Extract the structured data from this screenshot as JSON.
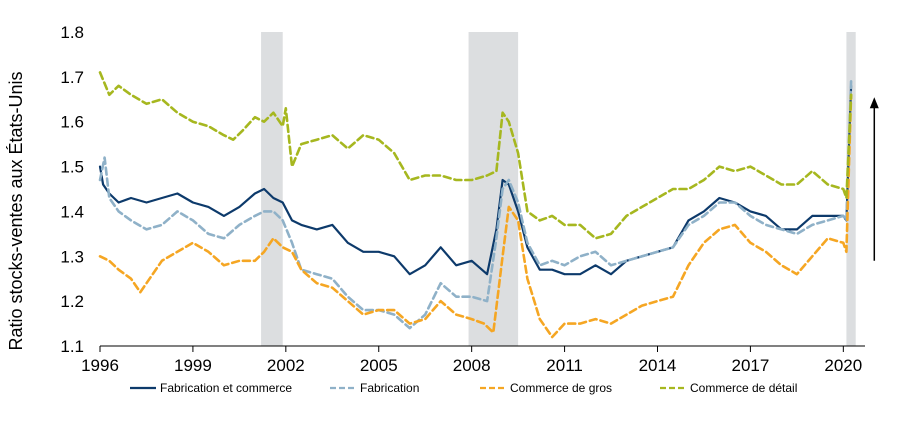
{
  "chart_data": {
    "type": "line",
    "ylabel": "Ratio stocks-ventes aux États-Unis",
    "xlabel": "",
    "xlim": [
      1996.0,
      2020.7
    ],
    "ylim": [
      1.1,
      1.8
    ],
    "x_ticks": [
      1996,
      1999,
      2002,
      2005,
      2008,
      2011,
      2014,
      2017,
      2020
    ],
    "x_tick_labels": [
      "1996",
      "1999",
      "2002",
      "2005",
      "2008",
      "2011",
      "2014",
      "2017",
      "2020"
    ],
    "y_ticks": [
      1.1,
      1.2,
      1.3,
      1.4,
      1.5,
      1.6,
      1.7,
      1.8
    ],
    "y_tick_labels": [
      "1.1",
      "1.2",
      "1.3",
      "1.4",
      "1.5",
      "1.6",
      "1.7",
      "1.8"
    ],
    "grid": false,
    "legend_position": "bottom",
    "recession_bands": [
      [
        2001.2,
        2001.9
      ],
      [
        2007.9,
        2009.5
      ],
      [
        2020.1,
        2020.4
      ]
    ],
    "annotation_arrow": {
      "x": 2021.0,
      "y_from": 1.29,
      "y_to": 1.65
    },
    "series": [
      {
        "name": "Fabrication et commerce",
        "color": "#0d3a6b",
        "dash": "solid",
        "x": [
          1996.0,
          1996.1,
          1996.3,
          1996.6,
          1997.0,
          1997.5,
          1998.0,
          1998.5,
          1999.0,
          1999.5,
          2000.0,
          2000.5,
          2001.0,
          2001.3,
          2001.6,
          2001.9,
          2002.2,
          2002.5,
          2003.0,
          2003.5,
          2004.0,
          2004.5,
          2005.0,
          2005.5,
          2006.0,
          2006.5,
          2007.0,
          2007.5,
          2008.0,
          2008.5,
          2008.8,
          2009.0,
          2009.2,
          2009.5,
          2009.8,
          2010.2,
          2010.6,
          2011.0,
          2011.5,
          2012.0,
          2012.5,
          2013.0,
          2013.5,
          2014.0,
          2014.5,
          2015.0,
          2015.5,
          2016.0,
          2016.5,
          2017.0,
          2017.5,
          2018.0,
          2018.5,
          2019.0,
          2019.5,
          2020.0,
          2020.1,
          2020.25
        ],
        "y": [
          1.5,
          1.46,
          1.44,
          1.42,
          1.43,
          1.42,
          1.43,
          1.44,
          1.42,
          1.41,
          1.39,
          1.41,
          1.44,
          1.45,
          1.43,
          1.42,
          1.38,
          1.37,
          1.36,
          1.37,
          1.33,
          1.31,
          1.31,
          1.3,
          1.26,
          1.28,
          1.32,
          1.28,
          1.29,
          1.26,
          1.36,
          1.47,
          1.46,
          1.4,
          1.32,
          1.27,
          1.27,
          1.26,
          1.26,
          1.28,
          1.26,
          1.29,
          1.3,
          1.31,
          1.32,
          1.38,
          1.4,
          1.43,
          1.42,
          1.4,
          1.39,
          1.36,
          1.36,
          1.39,
          1.39,
          1.39,
          1.38,
          1.68
        ]
      },
      {
        "name": "Fabrication",
        "color": "#8fb1c8",
        "dash": "dashed",
        "x": [
          1996.0,
          1996.15,
          1996.3,
          1996.6,
          1997.0,
          1997.5,
          1998.0,
          1998.5,
          1999.0,
          1999.5,
          2000.0,
          2000.5,
          2001.0,
          2001.3,
          2001.6,
          2001.9,
          2002.2,
          2002.5,
          2003.0,
          2003.5,
          2004.0,
          2004.5,
          2005.0,
          2005.5,
          2006.0,
          2006.5,
          2007.0,
          2007.5,
          2008.0,
          2008.5,
          2008.8,
          2009.0,
          2009.2,
          2009.5,
          2009.8,
          2010.2,
          2010.6,
          2011.0,
          2011.5,
          2012.0,
          2012.5,
          2013.0,
          2013.5,
          2014.0,
          2014.5,
          2015.0,
          2015.5,
          2016.0,
          2016.5,
          2017.0,
          2017.5,
          2018.0,
          2018.5,
          2019.0,
          2019.5,
          2020.0,
          2020.1,
          2020.25
        ],
        "y": [
          1.47,
          1.52,
          1.43,
          1.4,
          1.38,
          1.36,
          1.37,
          1.4,
          1.38,
          1.35,
          1.34,
          1.37,
          1.39,
          1.4,
          1.4,
          1.38,
          1.33,
          1.27,
          1.26,
          1.25,
          1.21,
          1.18,
          1.18,
          1.17,
          1.14,
          1.17,
          1.24,
          1.21,
          1.21,
          1.2,
          1.34,
          1.45,
          1.47,
          1.42,
          1.33,
          1.28,
          1.29,
          1.28,
          1.3,
          1.31,
          1.28,
          1.29,
          1.3,
          1.31,
          1.32,
          1.37,
          1.39,
          1.42,
          1.42,
          1.39,
          1.37,
          1.36,
          1.35,
          1.37,
          1.38,
          1.39,
          1.38,
          1.69
        ]
      },
      {
        "name": "Commerce de gros",
        "color": "#f5a623",
        "dash": "dashed",
        "x": [
          1996.0,
          1996.3,
          1996.6,
          1997.0,
          1997.3,
          1997.7,
          1998.0,
          1998.5,
          1999.0,
          1999.5,
          2000.0,
          2000.5,
          2001.0,
          2001.3,
          2001.6,
          2001.9,
          2002.2,
          2002.5,
          2003.0,
          2003.5,
          2004.0,
          2004.5,
          2005.0,
          2005.5,
          2006.0,
          2006.5,
          2007.0,
          2007.5,
          2008.0,
          2008.4,
          2008.7,
          2009.0,
          2009.2,
          2009.5,
          2009.8,
          2010.2,
          2010.6,
          2011.0,
          2011.5,
          2012.0,
          2012.5,
          2013.0,
          2013.5,
          2014.0,
          2014.5,
          2015.0,
          2015.5,
          2016.0,
          2016.5,
          2017.0,
          2017.5,
          2018.0,
          2018.5,
          2019.0,
          2019.5,
          2020.0,
          2020.1,
          2020.25
        ],
        "y": [
          1.3,
          1.29,
          1.27,
          1.25,
          1.22,
          1.26,
          1.29,
          1.31,
          1.33,
          1.31,
          1.28,
          1.29,
          1.29,
          1.31,
          1.34,
          1.32,
          1.31,
          1.27,
          1.24,
          1.23,
          1.2,
          1.17,
          1.18,
          1.18,
          1.15,
          1.16,
          1.2,
          1.17,
          1.16,
          1.15,
          1.13,
          1.3,
          1.41,
          1.38,
          1.25,
          1.16,
          1.12,
          1.15,
          1.15,
          1.16,
          1.15,
          1.17,
          1.19,
          1.2,
          1.21,
          1.28,
          1.33,
          1.36,
          1.37,
          1.33,
          1.31,
          1.28,
          1.26,
          1.3,
          1.34,
          1.33,
          1.31,
          1.66
        ]
      },
      {
        "name": "Commerce de détail",
        "color": "#a6b71f",
        "dash": "dashed",
        "x": [
          1996.0,
          1996.3,
          1996.6,
          1997.0,
          1997.5,
          1998.0,
          1998.5,
          1999.0,
          1999.5,
          2000.0,
          2000.3,
          2000.6,
          2001.0,
          2001.3,
          2001.6,
          2001.9,
          2002.0,
          2002.2,
          2002.5,
          2003.0,
          2003.5,
          2004.0,
          2004.5,
          2005.0,
          2005.5,
          2006.0,
          2006.5,
          2007.0,
          2007.5,
          2008.0,
          2008.5,
          2008.8,
          2009.0,
          2009.2,
          2009.5,
          2009.8,
          2010.2,
          2010.6,
          2011.0,
          2011.5,
          2012.0,
          2012.5,
          2013.0,
          2013.5,
          2014.0,
          2014.5,
          2015.0,
          2015.5,
          2016.0,
          2016.5,
          2017.0,
          2017.5,
          2018.0,
          2018.5,
          2019.0,
          2019.5,
          2020.0,
          2020.1,
          2020.25
        ],
        "y": [
          1.71,
          1.66,
          1.68,
          1.66,
          1.64,
          1.65,
          1.62,
          1.6,
          1.59,
          1.57,
          1.56,
          1.58,
          1.61,
          1.6,
          1.62,
          1.59,
          1.63,
          1.5,
          1.55,
          1.56,
          1.57,
          1.54,
          1.57,
          1.56,
          1.53,
          1.47,
          1.48,
          1.48,
          1.47,
          1.47,
          1.48,
          1.49,
          1.62,
          1.6,
          1.53,
          1.4,
          1.38,
          1.39,
          1.37,
          1.37,
          1.34,
          1.35,
          1.39,
          1.41,
          1.43,
          1.45,
          1.45,
          1.47,
          1.5,
          1.49,
          1.5,
          1.48,
          1.46,
          1.46,
          1.49,
          1.46,
          1.45,
          1.43,
          1.66
        ]
      }
    ]
  }
}
